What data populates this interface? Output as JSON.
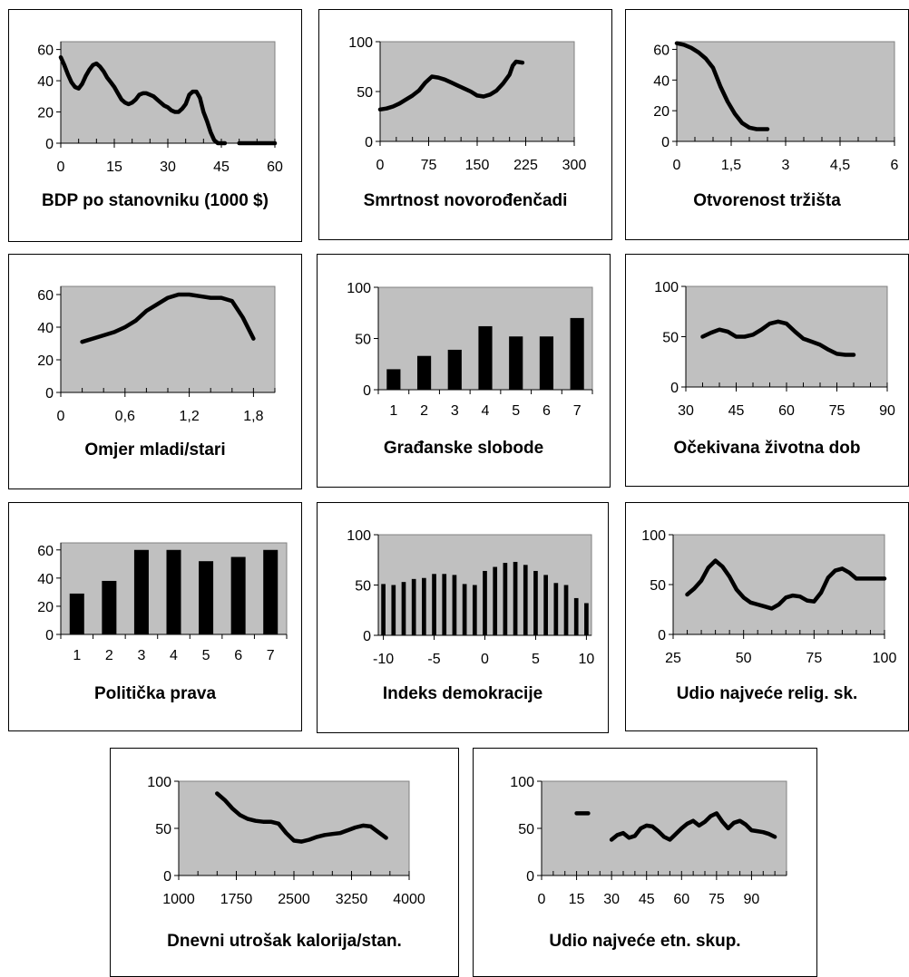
{
  "chart_data": [
    {
      "type": "line",
      "title": "BDP po stanovniku (1000 $)",
      "xlim": [
        0,
        60
      ],
      "ylim": [
        0,
        65
      ],
      "xticks": [
        0,
        15,
        30,
        45,
        60
      ],
      "yticks": [
        0,
        20,
        40,
        60
      ],
      "xtick_labels": [
        "0",
        "15",
        "30",
        "45",
        "60"
      ],
      "ytick_labels": [
        "0",
        "20",
        "40",
        "60"
      ],
      "x_minor_step": 5,
      "grid": false,
      "series": [
        {
          "x": [
            0,
            1,
            2,
            3,
            4,
            5,
            6,
            7,
            8,
            9,
            10,
            11,
            12,
            13,
            14,
            15,
            16,
            17,
            18,
            19,
            20,
            21,
            22,
            23,
            24,
            25,
            26,
            27,
            28,
            29,
            30,
            31,
            32,
            33,
            34,
            35,
            36,
            37,
            38,
            39,
            40,
            41,
            42,
            43,
            44,
            45,
            46
          ],
          "y": [
            55,
            50,
            44,
            39,
            36,
            35,
            38,
            43,
            47,
            50,
            51,
            49,
            46,
            42,
            39,
            36,
            32,
            28,
            26,
            25,
            26,
            28,
            31,
            32,
            32,
            31,
            30,
            28,
            26,
            24,
            23,
            21,
            20,
            20,
            22,
            25,
            31,
            33,
            33,
            29,
            20,
            14,
            7,
            2,
            0,
            0,
            0
          ]
        },
        {
          "x": [
            50,
            52,
            55,
            58,
            60
          ],
          "y": [
            0,
            0,
            0,
            0,
            0
          ]
        }
      ]
    },
    {
      "type": "line",
      "title": "Smrtnost novorođenčadi",
      "xlim": [
        0,
        300
      ],
      "ylim": [
        0,
        100
      ],
      "xticks": [
        0,
        75,
        150,
        225,
        300
      ],
      "yticks": [
        0,
        50,
        100
      ],
      "xtick_labels": [
        "0",
        "75",
        "150",
        "225",
        "300"
      ],
      "ytick_labels": [
        "0",
        "50",
        "100"
      ],
      "x_minor_step": 25,
      "grid": false,
      "series": [
        {
          "x": [
            0,
            10,
            20,
            30,
            40,
            50,
            60,
            70,
            80,
            90,
            100,
            110,
            120,
            130,
            140,
            150,
            160,
            170,
            180,
            190,
            200,
            205,
            210,
            220
          ],
          "y": [
            32,
            33,
            35,
            38,
            42,
            46,
            51,
            59,
            65,
            64,
            62,
            59,
            56,
            53,
            50,
            46,
            45,
            47,
            51,
            58,
            67,
            76,
            80,
            79
          ]
        }
      ]
    },
    {
      "type": "line",
      "title": "Otvorenost tržišta",
      "xlim": [
        0,
        6
      ],
      "ylim": [
        0,
        65
      ],
      "xticks": [
        0,
        1.5,
        3,
        4.5,
        6
      ],
      "yticks": [
        0,
        20,
        40,
        60
      ],
      "xtick_labels": [
        "0",
        "1,5",
        "3",
        "4,5",
        "6"
      ],
      "ytick_labels": [
        "0",
        "20",
        "40",
        "60"
      ],
      "x_minor_step": 0.5,
      "grid": false,
      "series": [
        {
          "x": [
            0,
            0.2,
            0.4,
            0.6,
            0.8,
            1,
            1.2,
            1.4,
            1.6,
            1.8,
            2,
            2.2,
            2.4,
            2.5
          ],
          "y": [
            64,
            63,
            61,
            58,
            54,
            48,
            36,
            26,
            18,
            12,
            9,
            8,
            8,
            8
          ]
        }
      ]
    },
    {
      "type": "line",
      "title": "Omjer mladi/stari",
      "xlim": [
        0,
        2
      ],
      "ylim": [
        0,
        65
      ],
      "xticks": [
        0,
        0.6,
        1.2,
        1.8
      ],
      "yticks": [
        0,
        20,
        40,
        60
      ],
      "xtick_labels": [
        "0",
        "0,6",
        "1,2",
        "1,8"
      ],
      "ytick_labels": [
        "0",
        "20",
        "40",
        "60"
      ],
      "x_minor_step": 0.2,
      "grid": false,
      "series": [
        {
          "x": [
            0.2,
            0.3,
            0.4,
            0.5,
            0.6,
            0.7,
            0.8,
            0.9,
            1,
            1.1,
            1.2,
            1.3,
            1.4,
            1.5,
            1.6,
            1.7,
            1.8
          ],
          "y": [
            31,
            33,
            35,
            37,
            40,
            44,
            50,
            54,
            58,
            60,
            60,
            59,
            58,
            58,
            56,
            46,
            33
          ]
        }
      ]
    },
    {
      "type": "bar",
      "title": "Građanske slobode",
      "categories": [
        "1",
        "2",
        "3",
        "4",
        "5",
        "6",
        "7"
      ],
      "values": [
        20,
        33,
        39,
        62,
        52,
        52,
        70
      ],
      "ylim": [
        0,
        100
      ],
      "yticks": [
        0,
        50,
        100
      ],
      "ytick_labels": [
        "0",
        "50",
        "100"
      ],
      "grid": false
    },
    {
      "type": "line",
      "title": "Očekivana životna dob",
      "xlim": [
        30,
        90
      ],
      "ylim": [
        0,
        100
      ],
      "xticks": [
        30,
        45,
        60,
        75,
        90
      ],
      "yticks": [
        0,
        50,
        100
      ],
      "xtick_labels": [
        "30",
        "45",
        "60",
        "75",
        "90"
      ],
      "ytick_labels": [
        "0",
        "50",
        "100"
      ],
      "x_minor_step": 5,
      "grid": false,
      "series": [
        {
          "x": [
            35,
            37.5,
            40,
            42.5,
            45,
            47.5,
            50,
            52.5,
            55,
            57.5,
            60,
            62.5,
            65,
            67.5,
            70,
            72.5,
            75,
            77.5,
            80
          ],
          "y": [
            50,
            54,
            57,
            55,
            50,
            50,
            52,
            57,
            63,
            65,
            63,
            55,
            48,
            45,
            42,
            37,
            33,
            32,
            32
          ]
        }
      ]
    },
    {
      "type": "bar",
      "title": "Politička prava",
      "categories": [
        "1",
        "2",
        "3",
        "4",
        "5",
        "6",
        "7"
      ],
      "values": [
        29,
        38,
        60,
        60,
        52,
        55,
        60
      ],
      "ylim": [
        0,
        65
      ],
      "yticks": [
        0,
        20,
        40,
        60
      ],
      "ytick_labels": [
        "0",
        "20",
        "40",
        "60"
      ],
      "grid": false
    },
    {
      "type": "bar",
      "title": "Indeks demokracije",
      "x": [
        -10,
        -9,
        -8,
        -7,
        -6,
        -5,
        -4,
        -3,
        -2,
        -1,
        0,
        1,
        2,
        3,
        4,
        5,
        6,
        7,
        8,
        9,
        10
      ],
      "values": [
        51,
        50,
        53,
        56,
        57,
        61,
        61,
        60,
        51,
        50,
        64,
        68,
        72,
        73,
        70,
        64,
        60,
        52,
        50,
        37,
        32
      ],
      "xlim": [
        -10.5,
        10.5
      ],
      "ylim": [
        0,
        100
      ],
      "xticks": [
        -10,
        -5,
        0,
        5,
        10
      ],
      "yticks": [
        0,
        50,
        100
      ],
      "xtick_labels": [
        "-10",
        "-5",
        "0",
        "5",
        "10"
      ],
      "ytick_labels": [
        "0",
        "50",
        "100"
      ],
      "grid": false
    },
    {
      "type": "line",
      "title": "Udio najveće relig. sk.",
      "xlim": [
        25,
        100
      ],
      "ylim": [
        0,
        100
      ],
      "xticks": [
        25,
        50,
        75,
        100
      ],
      "yticks": [
        0,
        50,
        100
      ],
      "xtick_labels": [
        "25",
        "50",
        "75",
        "100"
      ],
      "ytick_labels": [
        "0",
        "50",
        "100"
      ],
      "x_minor_step": 5,
      "grid": false,
      "series": [
        {
          "x": [
            30,
            32.5,
            35,
            37.5,
            40,
            42.5,
            45,
            47.5,
            50,
            52.5,
            55,
            57.5,
            60,
            62.5,
            65,
            67.5,
            70,
            72.5,
            75,
            77.5,
            80,
            82.5,
            85,
            87.5,
            90,
            92.5,
            95,
            97.5,
            100
          ],
          "y": [
            40,
            46,
            54,
            67,
            74,
            68,
            58,
            45,
            37,
            32,
            30,
            28,
            26,
            30,
            37,
            39,
            38,
            34,
            33,
            42,
            57,
            64,
            66,
            62,
            56,
            56,
            56,
            56,
            56
          ]
        }
      ]
    },
    {
      "type": "line",
      "title": "Dnevni utrošak kalorija/stan.",
      "xlim": [
        1000,
        4000
      ],
      "ylim": [
        0,
        100
      ],
      "xticks": [
        1000,
        1750,
        2500,
        3250,
        4000
      ],
      "yticks": [
        0,
        50,
        100
      ],
      "xtick_labels": [
        "1000",
        "1750",
        "2500",
        "3250",
        "4000"
      ],
      "ytick_labels": [
        "0",
        "50",
        "100"
      ],
      "x_minor_step": 250,
      "grid": false,
      "series": [
        {
          "x": [
            1500,
            1600,
            1700,
            1800,
            1900,
            2000,
            2100,
            2200,
            2300,
            2400,
            2500,
            2600,
            2700,
            2800,
            2900,
            3000,
            3100,
            3200,
            3300,
            3400,
            3500,
            3600,
            3700
          ],
          "y": [
            87,
            80,
            71,
            64,
            60,
            58,
            57,
            57,
            55,
            45,
            37,
            36,
            38,
            41,
            43,
            44,
            45,
            48,
            51,
            53,
            52,
            46,
            40
          ]
        }
      ]
    },
    {
      "type": "line",
      "title": "Udio najveće etn. skup.",
      "xlim": [
        0,
        105
      ],
      "ylim": [
        0,
        100
      ],
      "xticks": [
        0,
        15,
        30,
        45,
        60,
        75,
        90
      ],
      "yticks": [
        0,
        50,
        100
      ],
      "xtick_labels": [
        "0",
        "15",
        "30",
        "45",
        "60",
        "75",
        "90"
      ],
      "ytick_labels": [
        "0",
        "50",
        "100"
      ],
      "x_minor_step": 5,
      "grid": false,
      "series": [
        {
          "x": [
            15,
            20
          ],
          "y": [
            66,
            66
          ]
        },
        {
          "x": [
            30,
            32.5,
            35,
            37.5,
            40,
            42.5,
            45,
            47.5,
            50,
            52.5,
            55,
            57.5,
            60,
            62.5,
            65,
            67.5,
            70,
            72.5,
            75,
            77.5,
            80,
            82.5,
            85,
            87.5,
            90,
            92.5,
            95,
            97.5,
            100
          ],
          "y": [
            38,
            43,
            45,
            40,
            42,
            50,
            53,
            52,
            47,
            41,
            38,
            44,
            50,
            55,
            58,
            53,
            57,
            63,
            66,
            57,
            50,
            56,
            58,
            54,
            48,
            47,
            46,
            44,
            41
          ]
        }
      ]
    }
  ]
}
